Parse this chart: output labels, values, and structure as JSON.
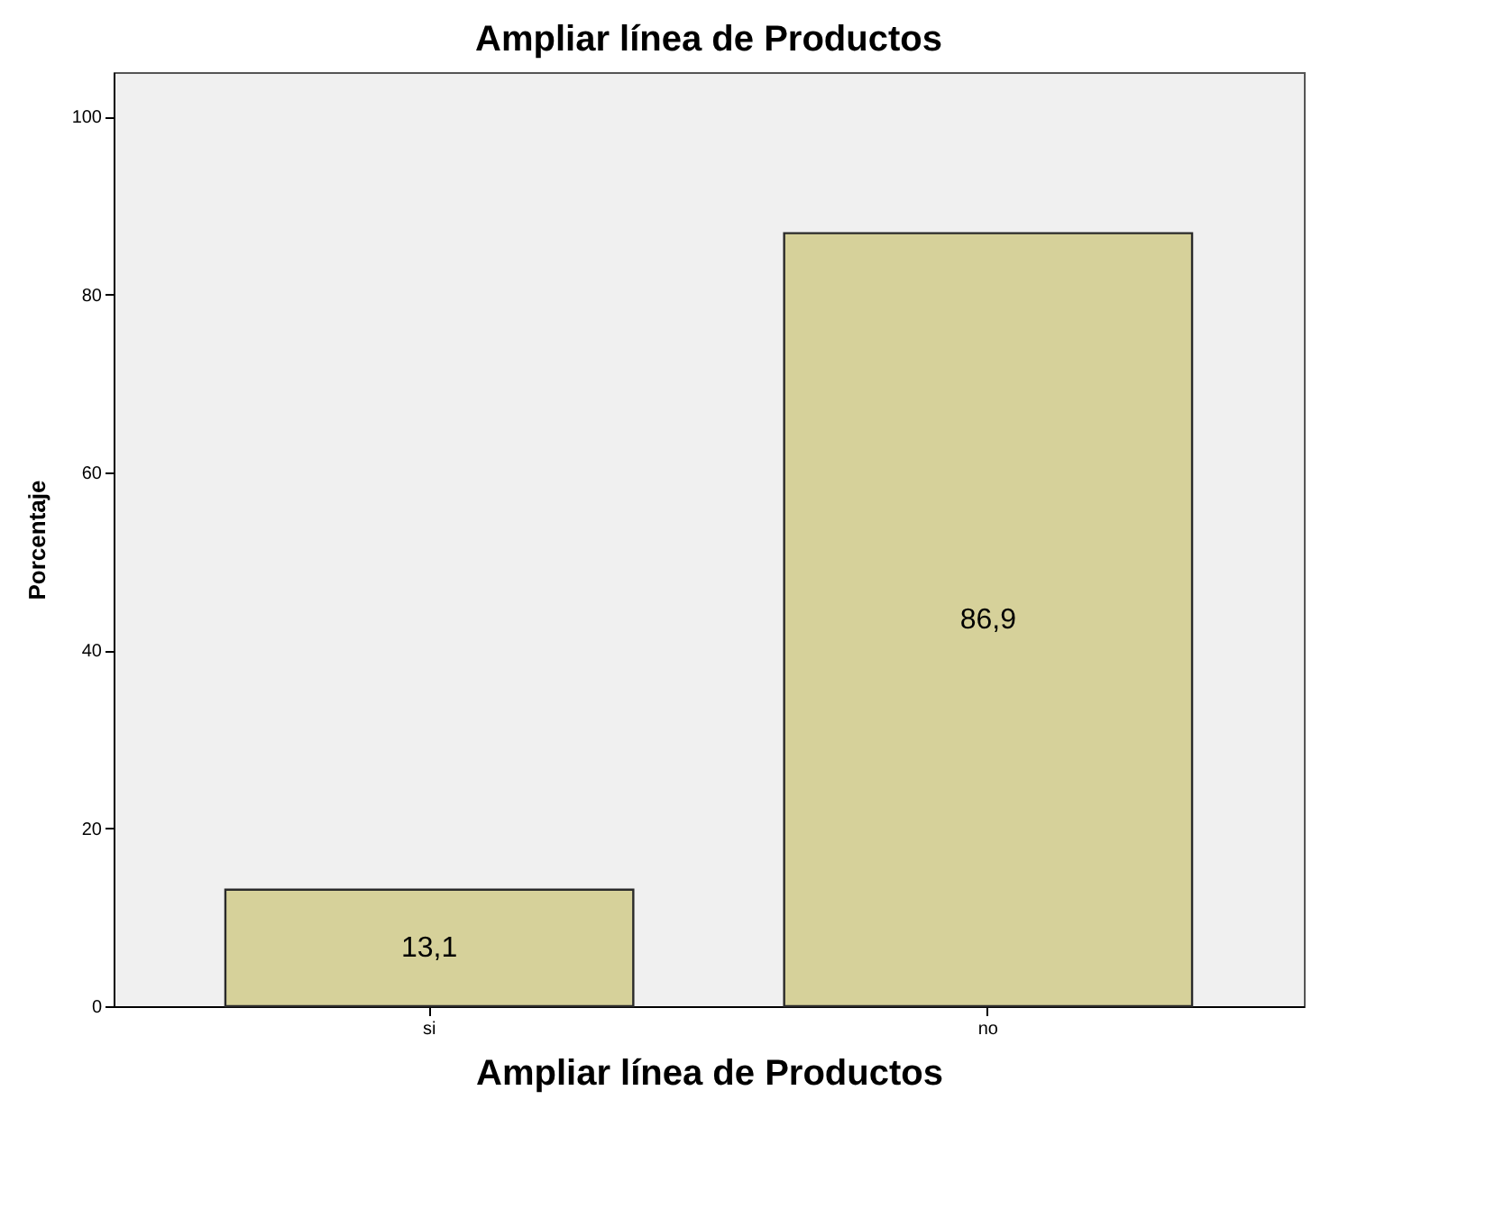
{
  "chart_data": {
    "type": "bar",
    "title": "Ampliar línea de Productos",
    "xlabel": "Ampliar línea de Productos",
    "ylabel": "Porcentaje",
    "categories": [
      "si",
      "no"
    ],
    "values": [
      13.1,
      86.9
    ],
    "value_labels": [
      "13,1",
      "86,9"
    ],
    "color": "#d6d19a",
    "ylim": [
      0,
      105
    ],
    "yticks": [
      0,
      20,
      40,
      60,
      80,
      100
    ],
    "grid": false
  }
}
